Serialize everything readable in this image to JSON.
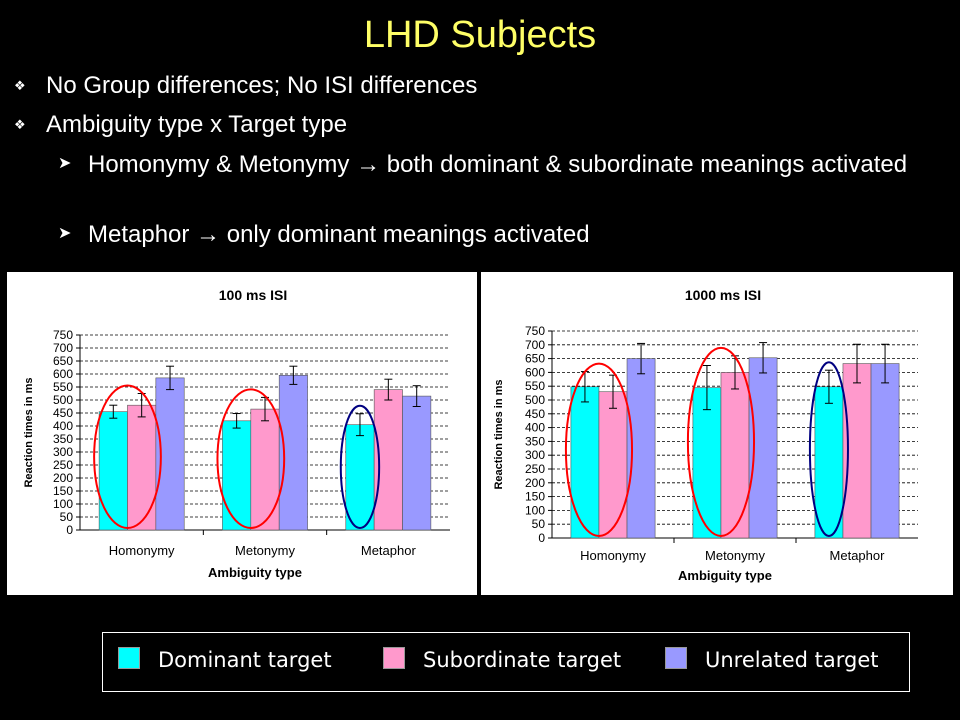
{
  "slide": {
    "title": "LHD Subjects",
    "bullets": [
      "No Group differences; No ISI differences",
      "Ambiguity type x Target type"
    ],
    "sub_bullets": [
      "Homonymy & Metonymy → both dominant & subordinate meanings activated",
      "Metaphor → only dominant meanings activated"
    ]
  },
  "colors": {
    "background": "#000000",
    "title": "#ffff66",
    "dominant": "#00ffff",
    "subordinate": "#ff99cc",
    "unrelated": "#9999ff",
    "circle_red": "#ff0000",
    "circle_navy": "#000080"
  },
  "legend": {
    "items": [
      {
        "label": "Dominant target",
        "color": "#00ffff"
      },
      {
        "label": "Subordinate target",
        "color": "#ff99cc"
      },
      {
        "label": "Unrelated target",
        "color": "#9999ff"
      }
    ]
  },
  "chart_data": [
    {
      "type": "bar",
      "title": "100 ms ISI",
      "xlabel": "Ambiguity type",
      "ylabel": "Reaction times in ms",
      "ylim": [
        0,
        750
      ],
      "yticks": [
        0,
        50,
        100,
        150,
        200,
        250,
        300,
        350,
        400,
        450,
        500,
        550,
        600,
        650,
        700,
        750
      ],
      "grid": "horizontal dashed",
      "categories": [
        "Homonymy",
        "Metonymy",
        "Metaphor"
      ],
      "series": [
        {
          "name": "Dominant target",
          "values": [
            455,
            420,
            405
          ],
          "error": [
            25,
            28,
            42
          ]
        },
        {
          "name": "Subordinate target",
          "values": [
            480,
            465,
            540
          ],
          "error": [
            45,
            45,
            40
          ]
        },
        {
          "name": "Unrelated target",
          "values": [
            585,
            595,
            515
          ],
          "error": [
            45,
            35,
            40
          ]
        }
      ],
      "circled": [
        {
          "category": "Homonymy",
          "series": [
            "Dominant target",
            "Subordinate target"
          ],
          "color": "red"
        },
        {
          "category": "Metonymy",
          "series": [
            "Dominant target",
            "Subordinate target"
          ],
          "color": "red"
        },
        {
          "category": "Metaphor",
          "series": [
            "Dominant target"
          ],
          "color": "navy"
        }
      ]
    },
    {
      "type": "bar",
      "title": "1000 ms ISI",
      "xlabel": "Ambiguity type",
      "ylabel": "Reaction times in ms",
      "ylim": [
        0,
        750
      ],
      "yticks": [
        0,
        50,
        100,
        150,
        200,
        250,
        300,
        350,
        400,
        450,
        500,
        550,
        600,
        650,
        700,
        750
      ],
      "grid": "horizontal dashed",
      "categories": [
        "Homonymy",
        "Metonymy",
        "Metaphor"
      ],
      "series": [
        {
          "name": "Dominant target",
          "values": [
            548,
            545,
            548
          ],
          "error": [
            55,
            80,
            60
          ]
        },
        {
          "name": "Subordinate target",
          "values": [
            530,
            600,
            632
          ],
          "error": [
            60,
            60,
            70
          ]
        },
        {
          "name": "Unrelated target",
          "values": [
            650,
            653,
            632
          ],
          "error": [
            55,
            55,
            70
          ]
        }
      ],
      "circled": [
        {
          "category": "Homonymy",
          "series": [
            "Dominant target",
            "Subordinate target"
          ],
          "color": "red"
        },
        {
          "category": "Metonymy",
          "series": [
            "Dominant target",
            "Subordinate target"
          ],
          "color": "red"
        },
        {
          "category": "Metaphor",
          "series": [
            "Dominant target"
          ],
          "color": "navy"
        }
      ]
    }
  ]
}
